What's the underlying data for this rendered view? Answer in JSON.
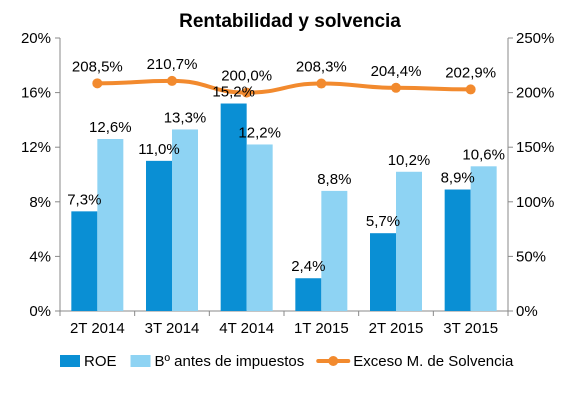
{
  "chart_data": {
    "type": "bar",
    "title": "Rentabilidad y solvencia",
    "categories": [
      "2T 2014",
      "3T 2014",
      "4T 2014",
      "1T 2015",
      "2T 2015",
      "3T 2015"
    ],
    "series": [
      {
        "name": "ROE",
        "kind": "bar",
        "axis": "left",
        "values": [
          7.3,
          11.0,
          15.2,
          2.4,
          5.7,
          8.9
        ],
        "labels": [
          "7,3%",
          "11,0%",
          "15,2%",
          "2,4%",
          "5,7%",
          "8,9%"
        ],
        "color": "#0A8FD4"
      },
      {
        "name": "Bº antes de impuestos",
        "kind": "bar",
        "axis": "left",
        "values": [
          12.6,
          13.3,
          12.2,
          8.8,
          10.2,
          10.6
        ],
        "labels": [
          "12,6%",
          "13,3%",
          "12,2%",
          "8,8%",
          "10,2%",
          "10,6%"
        ],
        "color": "#8ED3F3"
      },
      {
        "name": "Exceso M. de Solvencia",
        "kind": "line",
        "axis": "right",
        "values": [
          208.5,
          210.7,
          200.0,
          208.3,
          204.4,
          202.9
        ],
        "labels": [
          "208,5%",
          "210,7%",
          "200,0%",
          "208,3%",
          "204,4%",
          "202,9%"
        ],
        "color": "#F28A2E"
      }
    ],
    "y_left": {
      "ylim": [
        0,
        20
      ],
      "ticks": [
        0,
        4,
        8,
        12,
        16,
        20
      ],
      "tick_labels": [
        "0%",
        "4%",
        "8%",
        "12%",
        "16%",
        "20%"
      ]
    },
    "y_right": {
      "ylim": [
        0,
        250
      ],
      "ticks": [
        0,
        50,
        100,
        150,
        200,
        250
      ],
      "tick_labels": [
        "0%",
        "50%",
        "100%",
        "150%",
        "200%",
        "250%"
      ]
    },
    "grid": false,
    "legend_position": "bottom"
  }
}
